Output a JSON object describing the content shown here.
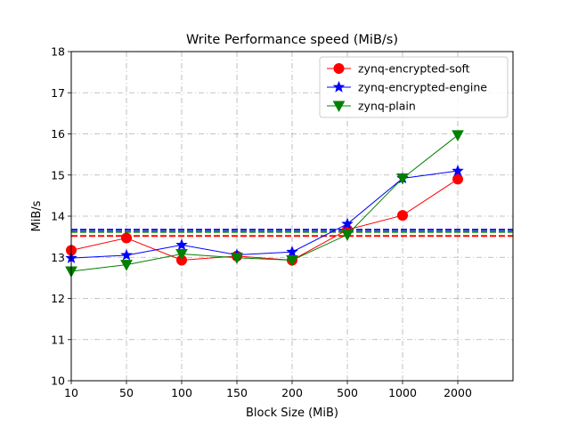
{
  "chart_data": {
    "type": "line",
    "title": "Write Performance speed (MiB/s)",
    "xlabel": "Block Size (MiB)",
    "ylabel": "MiB/s",
    "categories": [
      "10",
      "50",
      "100",
      "150",
      "200",
      "500",
      "1000",
      "2000"
    ],
    "ylim": [
      10,
      18
    ],
    "yticks": [
      10,
      11,
      12,
      13,
      14,
      15,
      16,
      17,
      18
    ],
    "grid": true,
    "legend_position": "top-right",
    "series": [
      {
        "name": "zynq-encrypted-soft",
        "color": "#ff0000",
        "marker": "circle",
        "values": [
          13.17,
          13.47,
          12.93,
          13.03,
          12.93,
          13.67,
          14.02,
          14.9
        ],
        "mean": 13.52
      },
      {
        "name": "zynq-encrypted-engine",
        "color": "#0000ff",
        "marker": "star",
        "values": [
          12.98,
          13.05,
          13.3,
          13.06,
          13.13,
          13.81,
          14.92,
          15.1
        ],
        "mean": 13.67
      },
      {
        "name": "zynq-plain",
        "color": "#008000",
        "marker": "triangle-down",
        "values": [
          12.66,
          12.82,
          13.08,
          12.99,
          12.93,
          13.55,
          14.92,
          15.97
        ],
        "mean": 13.62
      }
    ]
  }
}
